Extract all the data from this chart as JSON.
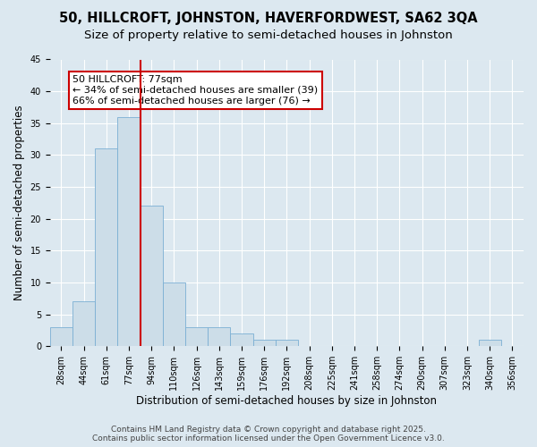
{
  "title": "50, HILLCROFT, JOHNSTON, HAVERFORDWEST, SA62 3QA",
  "subtitle": "Size of property relative to semi-detached houses in Johnston",
  "xlabel": "Distribution of semi-detached houses by size in Johnston",
  "ylabel": "Number of semi-detached properties",
  "bar_color": "#ccdde8",
  "bar_edge_color": "#7bafd4",
  "background_color": "#dce8f0",
  "grid_color": "#ffffff",
  "categories": [
    "28sqm",
    "44sqm",
    "61sqm",
    "77sqm",
    "94sqm",
    "110sqm",
    "126sqm",
    "143sqm",
    "159sqm",
    "176sqm",
    "192sqm",
    "208sqm",
    "225sqm",
    "241sqm",
    "258sqm",
    "274sqm",
    "290sqm",
    "307sqm",
    "323sqm",
    "340sqm",
    "356sqm"
  ],
  "values": [
    3,
    7,
    31,
    36,
    22,
    10,
    3,
    3,
    2,
    1,
    1,
    0,
    0,
    0,
    0,
    0,
    0,
    0,
    0,
    1,
    0
  ],
  "red_line_index": 3,
  "annotation_text_line1": "50 HILLCROFT: 77sqm",
  "annotation_text_line2": "← 34% of semi-detached houses are smaller (39)",
  "annotation_text_line3": "66% of semi-detached houses are larger (76) →",
  "annotation_box_color": "#ffffff",
  "annotation_edge_color": "#cc0000",
  "red_line_color": "#cc0000",
  "ylim": [
    0,
    45
  ],
  "yticks": [
    0,
    5,
    10,
    15,
    20,
    25,
    30,
    35,
    40,
    45
  ],
  "footer_line1": "Contains HM Land Registry data © Crown copyright and database right 2025.",
  "footer_line2": "Contains public sector information licensed under the Open Government Licence v3.0.",
  "title_fontsize": 10.5,
  "subtitle_fontsize": 9.5,
  "tick_fontsize": 7,
  "ylabel_fontsize": 8.5,
  "xlabel_fontsize": 8.5,
  "annotation_fontsize": 8,
  "footer_fontsize": 6.5
}
